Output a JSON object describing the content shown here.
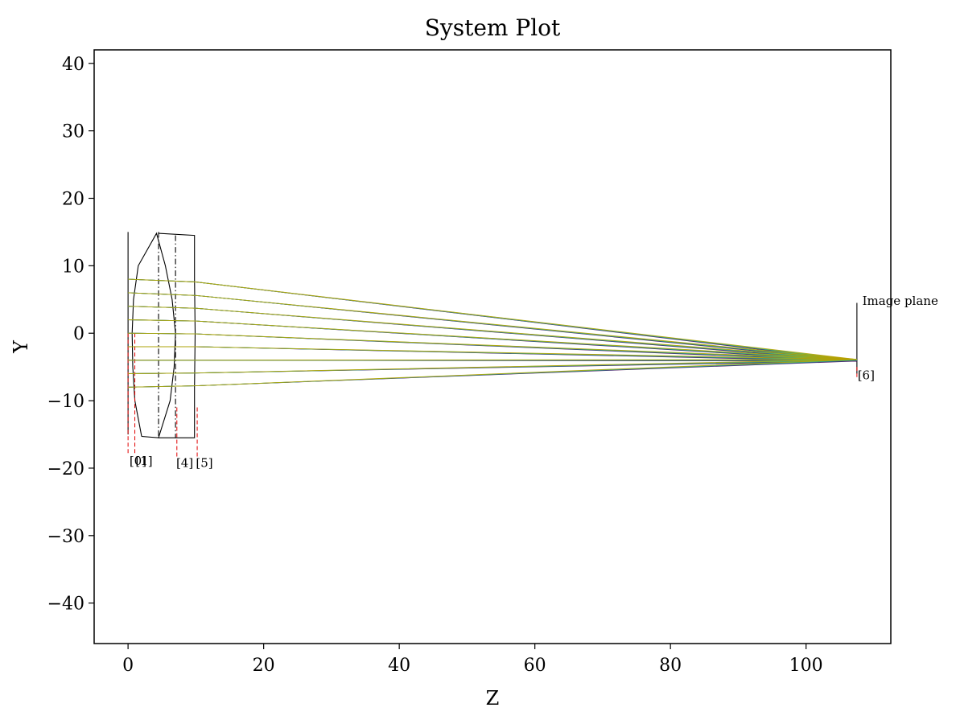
{
  "chart_data": {
    "type": "line",
    "title": "System Plot",
    "xlabel": "Z",
    "ylabel": "Y",
    "xlim": [
      -5,
      112.5
    ],
    "ylim": [
      -46,
      42
    ],
    "xticks": [
      0,
      20,
      40,
      60,
      80,
      100
    ],
    "yticks": [
      -40,
      -30,
      -20,
      -10,
      0,
      10,
      20,
      30,
      40
    ],
    "xtick_labels": [
      "0",
      "20",
      "40",
      "60",
      "80",
      "100"
    ],
    "ytick_labels": [
      "−40",
      "−30",
      "−20",
      "−10",
      "0",
      "10",
      "20",
      "30",
      "40"
    ],
    "grid": false,
    "surfaces": [
      {
        "z": 0.0,
        "top": 15.0,
        "bottom": -15.0,
        "style": "solid",
        "color": "#000000"
      },
      {
        "z": 4.5,
        "top": 15.0,
        "bottom": -15.5,
        "style": "dashdot",
        "color": "#000000"
      },
      {
        "z": 7.0,
        "top": 14.5,
        "bottom": -15.5,
        "style": "dashdot",
        "color": "#000000"
      },
      {
        "z": 107.5,
        "top": 4.5,
        "bottom": -6.0,
        "style": "solid",
        "color": "#000000"
      }
    ],
    "lens_outlines": [
      {
        "name": "lens-1",
        "points": [
          [
            2.0,
            -15.3
          ],
          [
            1.0,
            -10.0
          ],
          [
            0.7,
            -5.0
          ],
          [
            0.6,
            0.0
          ],
          [
            0.8,
            5.0
          ],
          [
            1.5,
            10.0
          ],
          [
            4.2,
            14.8
          ],
          [
            5.5,
            10.0
          ],
          [
            6.5,
            5.0
          ],
          [
            7.0,
            0.0
          ],
          [
            6.8,
            -5.0
          ],
          [
            6.2,
            -10.0
          ],
          [
            4.5,
            -15.5
          ],
          [
            2.0,
            -15.3
          ]
        ]
      },
      {
        "name": "lens-2",
        "points": [
          [
            4.5,
            14.8
          ],
          [
            9.8,
            14.5
          ],
          [
            9.8,
            8.0
          ],
          [
            9.9,
            0.0
          ],
          [
            9.8,
            -8.0
          ],
          [
            9.8,
            -15.5
          ],
          [
            4.5,
            -15.5
          ]
        ]
      }
    ],
    "surface_markers": [
      {
        "z": 0.0,
        "from": 0.0,
        "to": -18.0
      },
      {
        "z": 1.0,
        "from": 0.0,
        "to": -18.0
      },
      {
        "z": 7.2,
        "from": -11.0,
        "to": -18.5
      },
      {
        "z": 10.2,
        "from": -11.0,
        "to": -18.5
      },
      {
        "z": 107.5,
        "from": -5.0,
        "to": -6.5
      }
    ],
    "surface_labels": [
      {
        "text": "[0]",
        "z": 0.2,
        "y": -19.5
      },
      {
        "text": "[1]",
        "z": 1.1,
        "y": -19.5
      },
      {
        "text": "[4]",
        "z": 7.1,
        "y": -19.8
      },
      {
        "text": "[5]",
        "z": 10.0,
        "y": -19.8
      },
      {
        "text": "[6]",
        "z": 107.6,
        "y": -6.8
      }
    ],
    "image_plane_label": {
      "text": "Image plane",
      "z": 108.3,
      "y": 4.2
    },
    "focus": {
      "z": 107.5,
      "y": -4.0
    },
    "lens_exit_z": 10.0,
    "ray_colors": [
      "#440154",
      "#3b528b",
      "#21918c",
      "#5ec962",
      "#b8a000"
    ],
    "ray_heights": [
      8,
      6,
      4,
      2,
      0,
      -2,
      -4,
      -6,
      -8
    ],
    "ray_exit_heights": [
      7.6,
      5.6,
      3.7,
      1.8,
      -0.1,
      -2.0,
      -4.0,
      -5.9,
      -7.8
    ]
  }
}
